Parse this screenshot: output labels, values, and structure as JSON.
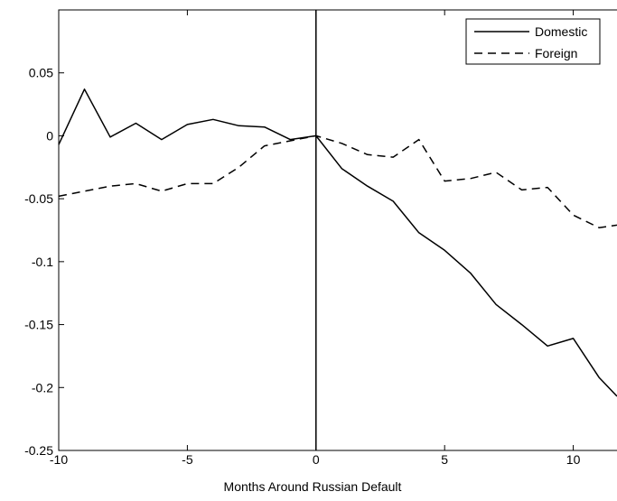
{
  "chart_data": {
    "type": "line",
    "title": "",
    "xlabel": "Months Around Russian Default",
    "ylabel": "",
    "xlim": [
      -10,
      11.7
    ],
    "ylim": [
      -0.25,
      0.1
    ],
    "xticks": [
      -10,
      -5,
      0,
      5,
      10
    ],
    "xtick_labels": [
      "-10",
      "-5",
      "0",
      "5",
      "10"
    ],
    "yticks": [
      -0.25,
      -0.2,
      -0.15,
      -0.1,
      -0.05,
      0,
      0.05
    ],
    "ytick_labels": [
      "-0.25",
      "-0.2",
      "-0.15",
      "-0.1",
      "-0.05",
      "0",
      "0.05"
    ],
    "grid": false,
    "legend_position": "top-right",
    "reference_line_x": 0,
    "series": [
      {
        "name": "Domestic",
        "style": "solid",
        "color": "#000000",
        "x": [
          -10,
          -9,
          -8,
          -7,
          -6,
          -5,
          -4,
          -3,
          -2,
          -1,
          0,
          1,
          2,
          3,
          4,
          5,
          6,
          7,
          8,
          9,
          10,
          11,
          11.7
        ],
        "y": [
          -0.007,
          0.037,
          -0.001,
          0.01,
          -0.003,
          0.009,
          0.013,
          0.008,
          0.007,
          -0.003,
          0.0,
          -0.026,
          -0.04,
          -0.052,
          -0.077,
          -0.091,
          -0.109,
          -0.134,
          -0.15,
          -0.167,
          -0.161,
          -0.192,
          -0.207
        ]
      },
      {
        "name": "Foreign",
        "style": "dashed",
        "color": "#000000",
        "x": [
          -10,
          -9,
          -8,
          -7,
          -6,
          -5,
          -4,
          -3,
          -2,
          -1,
          0,
          1,
          2,
          3,
          4,
          5,
          6,
          7,
          8,
          9,
          10,
          11,
          11.7
        ],
        "y": [
          -0.048,
          -0.044,
          -0.04,
          -0.038,
          -0.044,
          -0.038,
          -0.038,
          -0.025,
          -0.008,
          -0.004,
          0.0,
          -0.006,
          -0.015,
          -0.017,
          -0.003,
          -0.036,
          -0.034,
          -0.029,
          -0.043,
          -0.041,
          -0.063,
          -0.073,
          -0.071
        ]
      }
    ]
  }
}
